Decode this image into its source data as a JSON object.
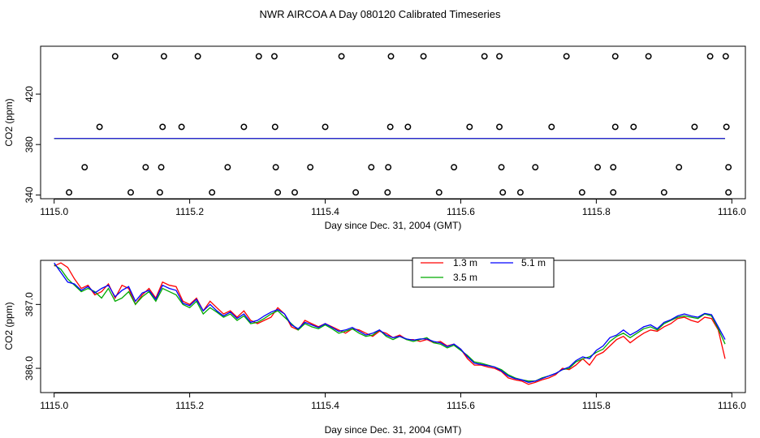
{
  "page": {
    "title": "NWR AIRCOA A  Day 080120  Calibrated Timeseries"
  },
  "chart_data": [
    {
      "type": "scatter",
      "xlabel": "Day since Dec. 31, 2004 (GMT)",
      "ylabel": "CO2 (ppm)",
      "xlim": [
        1114.98,
        1116.02
      ],
      "ylim": [
        337,
        458
      ],
      "xticks": [
        "1115.0",
        "1115.2",
        "1115.4",
        "1115.6",
        "1115.8",
        "1116.0"
      ],
      "yticks": [
        "340",
        "380",
        "420"
      ],
      "grid": false,
      "series": [
        {
          "color": "#000000",
          "marker": "circle-open",
          "points": [
            [
              1115.09,
              450
            ],
            [
              1115.162,
              450
            ],
            [
              1115.212,
              450
            ],
            [
              1115.302,
              450
            ],
            [
              1115.325,
              450
            ],
            [
              1115.424,
              450
            ],
            [
              1115.497,
              450
            ],
            [
              1115.545,
              450
            ],
            [
              1115.635,
              450
            ],
            [
              1115.657,
              450
            ],
            [
              1115.756,
              450
            ],
            [
              1115.828,
              450
            ],
            [
              1115.877,
              450
            ],
            [
              1115.968,
              450
            ],
            [
              1115.991,
              450
            ],
            [
              1115.067,
              394
            ],
            [
              1115.16,
              394
            ],
            [
              1115.188,
              394
            ],
            [
              1115.28,
              394
            ],
            [
              1115.326,
              394
            ],
            [
              1115.4,
              394
            ],
            [
              1115.496,
              394
            ],
            [
              1115.522,
              394
            ],
            [
              1115.613,
              394
            ],
            [
              1115.657,
              394
            ],
            [
              1115.734,
              394
            ],
            [
              1115.828,
              394
            ],
            [
              1115.855,
              394
            ],
            [
              1115.945,
              394
            ],
            [
              1115.992,
              394
            ],
            [
              1115.045,
              362
            ],
            [
              1115.135,
              362
            ],
            [
              1115.158,
              362
            ],
            [
              1115.256,
              362
            ],
            [
              1115.327,
              362
            ],
            [
              1115.378,
              362
            ],
            [
              1115.468,
              362
            ],
            [
              1115.493,
              362
            ],
            [
              1115.59,
              362
            ],
            [
              1115.66,
              362
            ],
            [
              1115.71,
              362
            ],
            [
              1115.802,
              362
            ],
            [
              1115.825,
              362
            ],
            [
              1115.922,
              362
            ],
            [
              1115.995,
              362
            ],
            [
              1115.022,
              342
            ],
            [
              1115.113,
              342
            ],
            [
              1115.156,
              342
            ],
            [
              1115.233,
              342
            ],
            [
              1115.33,
              342
            ],
            [
              1115.355,
              342
            ],
            [
              1115.445,
              342
            ],
            [
              1115.492,
              342
            ],
            [
              1115.568,
              342
            ],
            [
              1115.662,
              342
            ],
            [
              1115.688,
              342
            ],
            [
              1115.779,
              342
            ],
            [
              1115.825,
              342
            ],
            [
              1115.9,
              342
            ],
            [
              1115.995,
              342
            ]
          ]
        },
        {
          "color": "#ff0000",
          "values_ref": "first 1.3 m series",
          "constant": 384.8
        },
        {
          "color": "#00bb00",
          "constant": 384.7
        },
        {
          "color": "#0000ff",
          "constant": 384.8
        }
      ]
    },
    {
      "type": "line",
      "xlabel": "Day since Dec. 31, 2004 (GMT)",
      "ylabel": "CO2 (ppm)",
      "xlim": [
        1114.98,
        1116.02
      ],
      "ylim": [
        385.62,
        387.69
      ],
      "xticks": [
        "1115.0",
        "1115.2",
        "1115.4",
        "1115.6",
        "1115.8",
        "1116.0"
      ],
      "yticks": [
        "386.0",
        "387.0"
      ],
      "grid": false,
      "legend_position": "top",
      "x": [
        1115.0,
        1115.01,
        1115.02,
        1115.03,
        1115.04,
        1115.05,
        1115.06,
        1115.07,
        1115.08,
        1115.09,
        1115.1,
        1115.11,
        1115.12,
        1115.13,
        1115.14,
        1115.15,
        1115.16,
        1115.17,
        1115.18,
        1115.19,
        1115.2,
        1115.21,
        1115.22,
        1115.23,
        1115.24,
        1115.25,
        1115.26,
        1115.27,
        1115.28,
        1115.29,
        1115.3,
        1115.31,
        1115.32,
        1115.33,
        1115.34,
        1115.35,
        1115.36,
        1115.37,
        1115.38,
        1115.39,
        1115.4,
        1115.41,
        1115.42,
        1115.43,
        1115.44,
        1115.45,
        1115.46,
        1115.47,
        1115.48,
        1115.49,
        1115.5,
        1115.51,
        1115.52,
        1115.53,
        1115.54,
        1115.55,
        1115.56,
        1115.57,
        1115.58,
        1115.59,
        1115.6,
        1115.61,
        1115.62,
        1115.63,
        1115.64,
        1115.65,
        1115.66,
        1115.67,
        1115.68,
        1115.69,
        1115.7,
        1115.71,
        1115.72,
        1115.73,
        1115.74,
        1115.75,
        1115.76,
        1115.77,
        1115.78,
        1115.79,
        1115.8,
        1115.81,
        1115.82,
        1115.83,
        1115.84,
        1115.85,
        1115.86,
        1115.87,
        1115.88,
        1115.89,
        1115.9,
        1115.91,
        1115.92,
        1115.93,
        1115.94,
        1115.95,
        1115.96,
        1115.97,
        1115.98,
        1115.99
      ],
      "series": [
        {
          "name": "1.3 m",
          "color": "#ff0000",
          "values": [
            387.6,
            387.65,
            387.58,
            387.4,
            387.25,
            387.3,
            387.15,
            387.2,
            387.32,
            387.1,
            387.3,
            387.25,
            387.0,
            387.15,
            387.25,
            387.1,
            387.35,
            387.3,
            387.28,
            387.05,
            387.0,
            387.1,
            386.9,
            387.05,
            386.95,
            386.85,
            386.9,
            386.8,
            386.9,
            386.75,
            386.7,
            386.75,
            386.8,
            386.95,
            386.85,
            386.65,
            386.6,
            386.75,
            386.7,
            386.65,
            386.7,
            386.65,
            386.6,
            386.55,
            386.62,
            386.6,
            386.55,
            386.5,
            386.58,
            386.55,
            386.48,
            386.52,
            386.45,
            386.45,
            386.42,
            386.45,
            386.4,
            386.42,
            386.35,
            386.38,
            386.3,
            386.15,
            386.05,
            386.05,
            386.02,
            386.0,
            385.95,
            385.85,
            385.82,
            385.8,
            385.75,
            385.78,
            385.82,
            385.85,
            385.9,
            386.0,
            385.98,
            386.05,
            386.15,
            386.05,
            386.2,
            386.25,
            386.35,
            386.45,
            386.5,
            386.4,
            386.48,
            386.55,
            386.6,
            386.58,
            386.65,
            386.7,
            386.78,
            386.8,
            386.75,
            386.72,
            386.8,
            386.78,
            386.6,
            386.15
          ],
          "path_reused_with_offset_for_other_series": false
        },
        {
          "name": "3.5 m",
          "color": "#00aa00",
          "values": [
            387.62,
            387.55,
            387.4,
            387.3,
            387.2,
            387.25,
            387.2,
            387.1,
            387.25,
            387.05,
            387.1,
            387.2,
            387.0,
            387.12,
            387.2,
            387.05,
            387.25,
            387.2,
            387.15,
            387.0,
            386.95,
            387.05,
            386.85,
            386.95,
            386.88,
            386.8,
            386.85,
            386.75,
            386.82,
            386.7,
            386.72,
            386.78,
            386.85,
            386.9,
            386.8,
            386.7,
            386.6,
            386.7,
            386.65,
            386.62,
            386.68,
            386.62,
            386.55,
            386.58,
            386.62,
            386.55,
            386.5,
            386.52,
            386.6,
            386.5,
            386.45,
            386.5,
            386.45,
            386.42,
            386.45,
            386.48,
            386.4,
            386.38,
            386.32,
            386.36,
            386.28,
            386.2,
            386.1,
            386.08,
            386.05,
            386.02,
            385.98,
            385.9,
            385.85,
            385.82,
            385.8,
            385.8,
            385.85,
            385.88,
            385.92,
            385.98,
            386.0,
            386.1,
            386.15,
            386.18,
            386.25,
            386.3,
            386.42,
            386.5,
            386.55,
            386.48,
            386.55,
            386.62,
            386.65,
            386.6,
            386.7,
            386.75,
            386.8,
            386.82,
            386.8,
            386.78,
            386.85,
            386.82,
            386.62,
            386.38
          ]
        },
        {
          "name": "5.1 m",
          "color": "#0000ff",
          "values": [
            387.65,
            387.5,
            387.35,
            387.32,
            387.22,
            387.28,
            387.18,
            387.25,
            387.3,
            387.12,
            387.22,
            387.28,
            387.05,
            387.18,
            387.22,
            387.08,
            387.3,
            387.25,
            387.22,
            387.02,
            386.98,
            387.08,
            386.9,
            387.0,
            386.9,
            386.82,
            386.88,
            386.78,
            386.85,
            386.72,
            386.75,
            386.82,
            386.88,
            386.92,
            386.85,
            386.68,
            386.62,
            386.72,
            386.68,
            386.64,
            386.7,
            386.64,
            386.58,
            386.6,
            386.64,
            386.58,
            386.52,
            386.55,
            386.6,
            386.52,
            386.48,
            386.5,
            386.46,
            386.44,
            386.46,
            386.46,
            386.42,
            386.4,
            386.34,
            386.38,
            386.3,
            386.18,
            386.08,
            386.06,
            386.04,
            386.02,
            385.96,
            385.88,
            385.84,
            385.82,
            385.78,
            385.8,
            385.84,
            385.88,
            385.92,
            385.98,
            386.02,
            386.12,
            386.18,
            386.15,
            386.28,
            386.35,
            386.48,
            386.52,
            386.6,
            386.52,
            386.58,
            386.65,
            386.68,
            386.62,
            386.72,
            386.76,
            386.82,
            386.85,
            386.82,
            386.8,
            386.86,
            386.84,
            386.65,
            386.45
          ]
        }
      ]
    }
  ]
}
